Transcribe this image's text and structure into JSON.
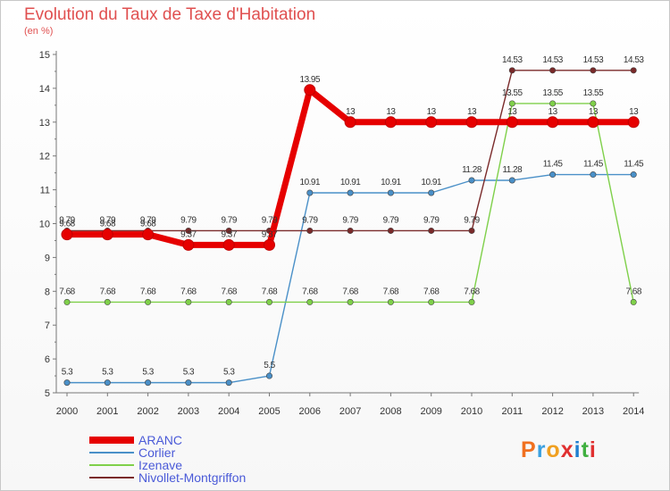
{
  "header": {
    "title": "Evolution du Taux de Taxe d'Habitation",
    "unit": "(en %)"
  },
  "logo": {
    "text": "Proxiti",
    "colors": [
      "#f07020",
      "#3aa0e0",
      "#f0a020",
      "#e03030",
      "#2080d0",
      "#40b040",
      "#e03030"
    ]
  },
  "chart_data": {
    "type": "line",
    "title": "Evolution du Taux de Taxe d'Habitation",
    "ylabel": "(en %)",
    "xlabel": "",
    "categories": [
      "2000",
      "2001",
      "2002",
      "2003",
      "2004",
      "2005",
      "2006",
      "2007",
      "2008",
      "2009",
      "2010",
      "2011",
      "2012",
      "2013",
      "2014"
    ],
    "ylim": [
      5,
      15
    ],
    "yticks": [
      "5",
      "6",
      "7",
      "8",
      "9",
      "10",
      "11",
      "12",
      "13",
      "14",
      "15"
    ],
    "grid": false,
    "legend_position": "bottom-left",
    "series": [
      {
        "name": "ARANC",
        "color": "#e60000",
        "values": [
          9.68,
          9.68,
          9.68,
          9.37,
          9.37,
          9.37,
          13.95,
          13,
          13,
          13,
          13,
          13,
          13,
          13,
          13
        ],
        "labels": [
          "9.68",
          "9.68",
          "9.68",
          "9.37",
          "9.37",
          "9.37",
          "13.95",
          "13",
          "13",
          "13",
          "13",
          "13",
          "13",
          "13",
          "13"
        ]
      },
      {
        "name": "Corlier",
        "color": "#4a90c8",
        "values": [
          5.3,
          5.3,
          5.3,
          5.3,
          5.3,
          5.5,
          10.91,
          10.91,
          10.91,
          10.91,
          11.28,
          11.28,
          11.45,
          11.45,
          11.45
        ],
        "labels": [
          "5.3",
          "5.3",
          "5.3",
          "5.3",
          "5.3",
          "5.5",
          "10.91",
          "10.91",
          "10.91",
          "10.91",
          "11.28",
          "11.28",
          "11.45",
          "11.45",
          "11.45"
        ]
      },
      {
        "name": "Izenave",
        "color": "#7fd04a",
        "values": [
          7.68,
          7.68,
          7.68,
          7.68,
          7.68,
          7.68,
          7.68,
          7.68,
          7.68,
          7.68,
          7.68,
          13.55,
          13.55,
          13.55,
          7.68
        ],
        "labels": [
          "7.68",
          "7.68",
          "7.68",
          "7.68",
          "7.68",
          "7.68",
          "7.68",
          "7.68",
          "7.68",
          "7.68",
          "7.68",
          "13.55",
          "13.55",
          "13.55",
          "7.68"
        ]
      },
      {
        "name": "Nivollet-Montgriffon",
        "color": "#7a2a2a",
        "values": [
          9.79,
          9.79,
          9.79,
          9.79,
          9.79,
          9.79,
          9.79,
          9.79,
          9.79,
          9.79,
          9.79,
          14.53,
          14.53,
          14.53,
          14.53
        ],
        "labels": [
          "9.79",
          "9.79",
          "9.79",
          "9.79",
          "9.79",
          "9.79",
          "9.79",
          "9.79",
          "9.79",
          "9.79",
          "9.79",
          "14.53",
          "14.53",
          "14.53",
          "14.53"
        ]
      }
    ]
  }
}
